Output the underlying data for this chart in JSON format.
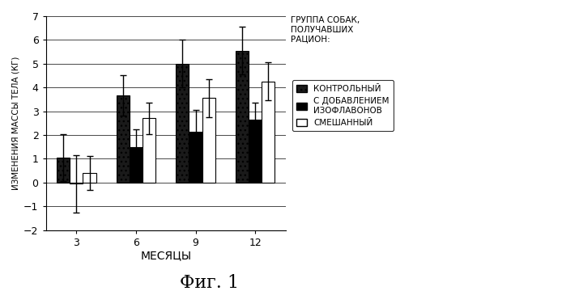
{
  "months": [
    3,
    6,
    9,
    12
  ],
  "control": [
    1.05,
    3.65,
    5.0,
    5.55
  ],
  "isoflavone": [
    -0.05,
    1.5,
    2.15,
    2.65
  ],
  "mixed": [
    0.4,
    2.7,
    3.55,
    4.25
  ],
  "control_err": [
    1.0,
    0.85,
    1.0,
    1.0
  ],
  "isoflavone_err": [
    1.2,
    0.75,
    0.9,
    0.7
  ],
  "mixed_err": [
    0.7,
    0.65,
    0.8,
    0.8
  ],
  "ylabel": "ИЗМЕНЕНИЯ МАССЫ ТЕЛА (КГ)",
  "xlabel": "МЕСЯЦЫ",
  "ylim": [
    -2,
    7
  ],
  "yticks": [
    -2,
    -1,
    0,
    1,
    2,
    3,
    4,
    5,
    6,
    7
  ],
  "legend_title": "ГРУППА СОБАК,\nПОЛУЧАВШИХ\nРАЦИОН:",
  "legend1": "КОНТРОЛЬНЫЙ",
  "legend2": "С ДОБАВЛЕНИЕМ\nИЗОФЛАВОНОВ",
  "legend3": "СМЕШАННЫЙ",
  "fig_label": "Фиг. 1",
  "bar_width": 0.22
}
